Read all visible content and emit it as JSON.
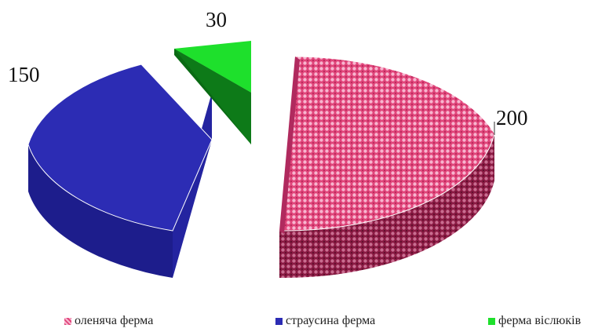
{
  "chart_data": {
    "type": "pie",
    "style": "3d-exploded",
    "title": "",
    "categories": [
      "оленяча ферма",
      "страусина ферма",
      "ферма віслюків"
    ],
    "values": [
      200,
      150,
      30
    ],
    "data_labels": [
      "200",
      "150",
      "30"
    ],
    "colors": {
      "оленяча ферма": "#e0457a",
      "страусина ферма": "#2c2cb4",
      "ферма віслюків": "#1ee02c"
    },
    "side_colors": {
      "оленяча ферма": "#8a1a43",
      "страусина ферма": "#1d1d8c",
      "ферма віслюків": "#0a6a14"
    },
    "legend_position": "bottom"
  }
}
